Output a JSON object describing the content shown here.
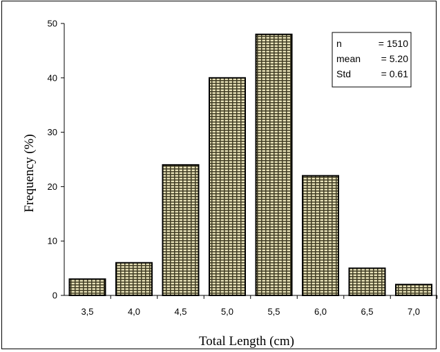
{
  "chart_data": {
    "type": "bar",
    "categories": [
      "3,5",
      "4,0",
      "4,5",
      "5,0",
      "5,5",
      "6,0",
      "6,5",
      "7,0"
    ],
    "values": [
      3,
      6,
      24,
      40,
      48,
      22,
      5,
      2
    ],
    "xlabel": "Total Length (cm)",
    "ylabel": "Frequency (%)",
    "ylim": [
      0,
      50
    ],
    "yticks": [
      "0",
      "10",
      "20",
      "30",
      "40",
      "50"
    ],
    "grid": false,
    "bar_fill": "hatched dark olive / beige",
    "legend_position": "top-right",
    "stats": [
      {
        "label": "n",
        "value": "= 1510"
      },
      {
        "label": "mean",
        "value": "= 5.20"
      },
      {
        "label": "Std",
        "value": "= 0.61"
      }
    ]
  },
  "colors": {
    "bar_dark": "#3e3a22",
    "bar_light": "#e8e2b8",
    "axis": "#000000"
  }
}
